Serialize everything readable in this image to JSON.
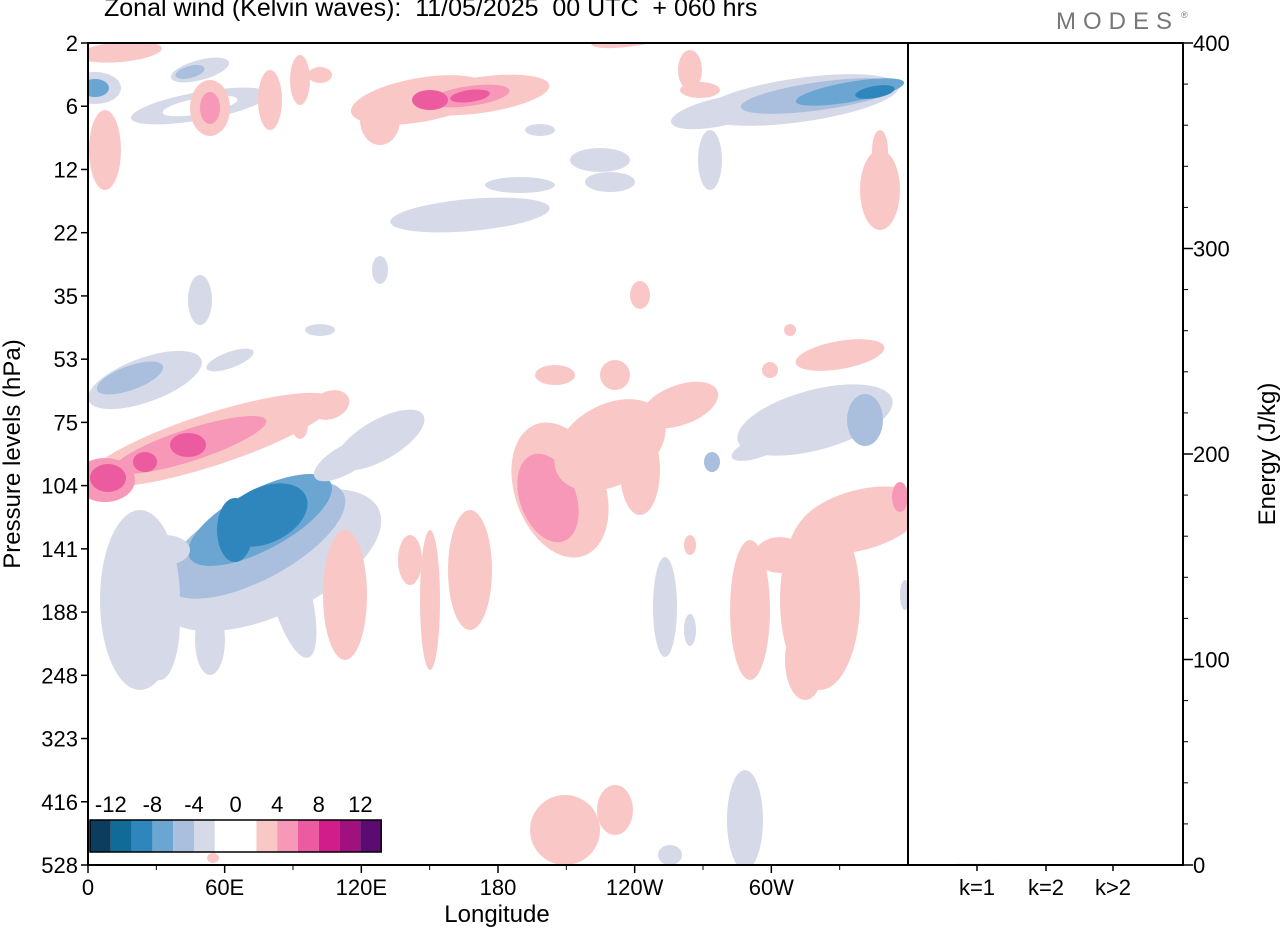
{
  "title": "Zonal wind (Kelvin waves):  11/05/2025  00 UTC  + 060 hrs",
  "logo": {
    "text": "MODES",
    "mark": "®"
  },
  "chart_data": [
    {
      "type": "heatmap",
      "panel": "hovmoller",
      "xlabel": "Longitude",
      "ylabel": "Pressure levels (hPa)",
      "x_ticks": [
        {
          "lon": 0,
          "label": "0"
        },
        {
          "lon": 60,
          "label": "60E"
        },
        {
          "lon": 120,
          "label": "120E"
        },
        {
          "lon": 180,
          "label": "180"
        },
        {
          "lon": 240,
          "label": "120W"
        },
        {
          "lon": 300,
          "label": "60W"
        }
      ],
      "xlim": [
        0,
        360
      ],
      "y_levels": [
        "2",
        "6",
        "12",
        "22",
        "35",
        "53",
        "75",
        "104",
        "141",
        "188",
        "248",
        "323",
        "416",
        "528"
      ],
      "y_scale": "categorical (model levels)",
      "colorbar": {
        "labels": [
          "-12",
          "-8",
          "-4",
          "0",
          "4",
          "8",
          "12"
        ],
        "colors": [
          "#0d3d5e",
          "#106b99",
          "#2e86bd",
          "#6aa6d1",
          "#a9bfdd",
          "#d6d9e8",
          "#ffffff",
          "#ffffff",
          "#f9c8c6",
          "#f798b8",
          "#ec5aa0",
          "#d01d8a",
          "#a0107e",
          "#5c0c70"
        ]
      }
    },
    {
      "type": "bar",
      "panel": "energy",
      "categories": [
        "k=1",
        "k=2",
        "k>2"
      ],
      "values": [
        0.5,
        0.4,
        0.2
      ],
      "ylabel": "Energy (J/kg)",
      "ylim": [
        0,
        400
      ],
      "y_ticks": [
        "0",
        "100",
        "200",
        "300",
        "400"
      ]
    }
  ]
}
